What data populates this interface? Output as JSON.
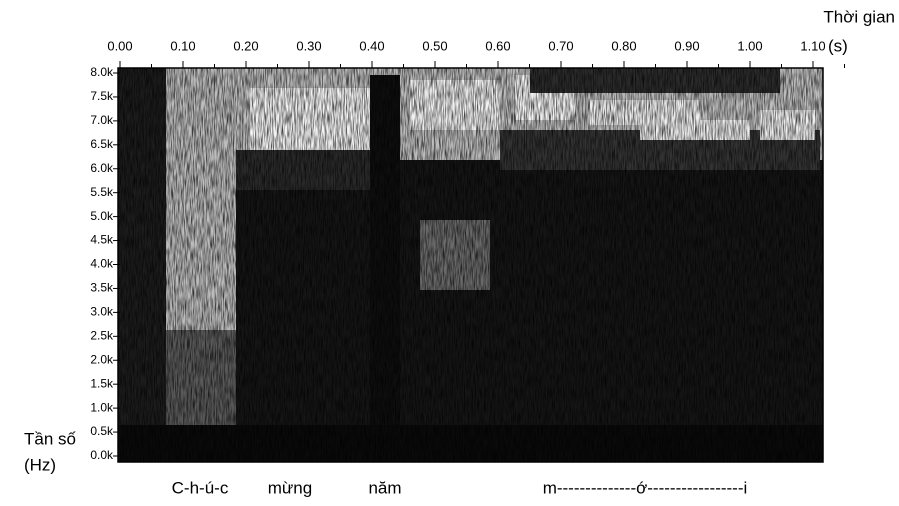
{
  "chart_data": {
    "type": "spectrogram",
    "x_label": "Thời gian",
    "x_unit": "(s)",
    "y_label": "Tần số",
    "y_unit": "(Hz)",
    "xlim": [
      0,
      1.1
    ],
    "xticks": [
      {
        "value": 0,
        "label": "0.00"
      },
      {
        "value": 0.1,
        "label": "0.10"
      },
      {
        "value": 0.2,
        "label": "0.20"
      },
      {
        "value": 0.3,
        "label": "0.30"
      },
      {
        "value": 0.4,
        "label": "0.40"
      },
      {
        "value": 0.5,
        "label": "0.50"
      },
      {
        "value": 0.6,
        "label": "0.60"
      },
      {
        "value": 0.7,
        "label": "0.70"
      },
      {
        "value": 0.8,
        "label": "0.80"
      },
      {
        "value": 0.9,
        "label": "0.90"
      },
      {
        "value": 1,
        "label": "1.00"
      },
      {
        "value": 1.1,
        "label": "1.10"
      }
    ],
    "ylim": [
      0,
      8000
    ],
    "yticks": [
      {
        "value": 0,
        "label": "0.0k"
      },
      {
        "value": 500,
        "label": "0.5k"
      },
      {
        "value": 1000,
        "label": "1.0k"
      },
      {
        "value": 1500,
        "label": "1.5k"
      },
      {
        "value": 2000,
        "label": "2.0k"
      },
      {
        "value": 2500,
        "label": "2.5k"
      },
      {
        "value": 3000,
        "label": "3.0k"
      },
      {
        "value": 3500,
        "label": "3.5k"
      },
      {
        "value": 4000,
        "label": "4.0k"
      },
      {
        "value": 4500,
        "label": "4.5k"
      },
      {
        "value": 5000,
        "label": "5.0k"
      },
      {
        "value": 5500,
        "label": "5.5k"
      },
      {
        "value": 6000,
        "label": "6.0k"
      },
      {
        "value": 6500,
        "label": "6.5k"
      },
      {
        "value": 7000,
        "label": "7.0k"
      },
      {
        "value": 7500,
        "label": "7.5k"
      },
      {
        "value": 8000,
        "label": "8.0k"
      }
    ],
    "annotations": [
      "C-h-ú-c",
      "mừng",
      "năm",
      "m--------------ớ-----------------i"
    ]
  }
}
